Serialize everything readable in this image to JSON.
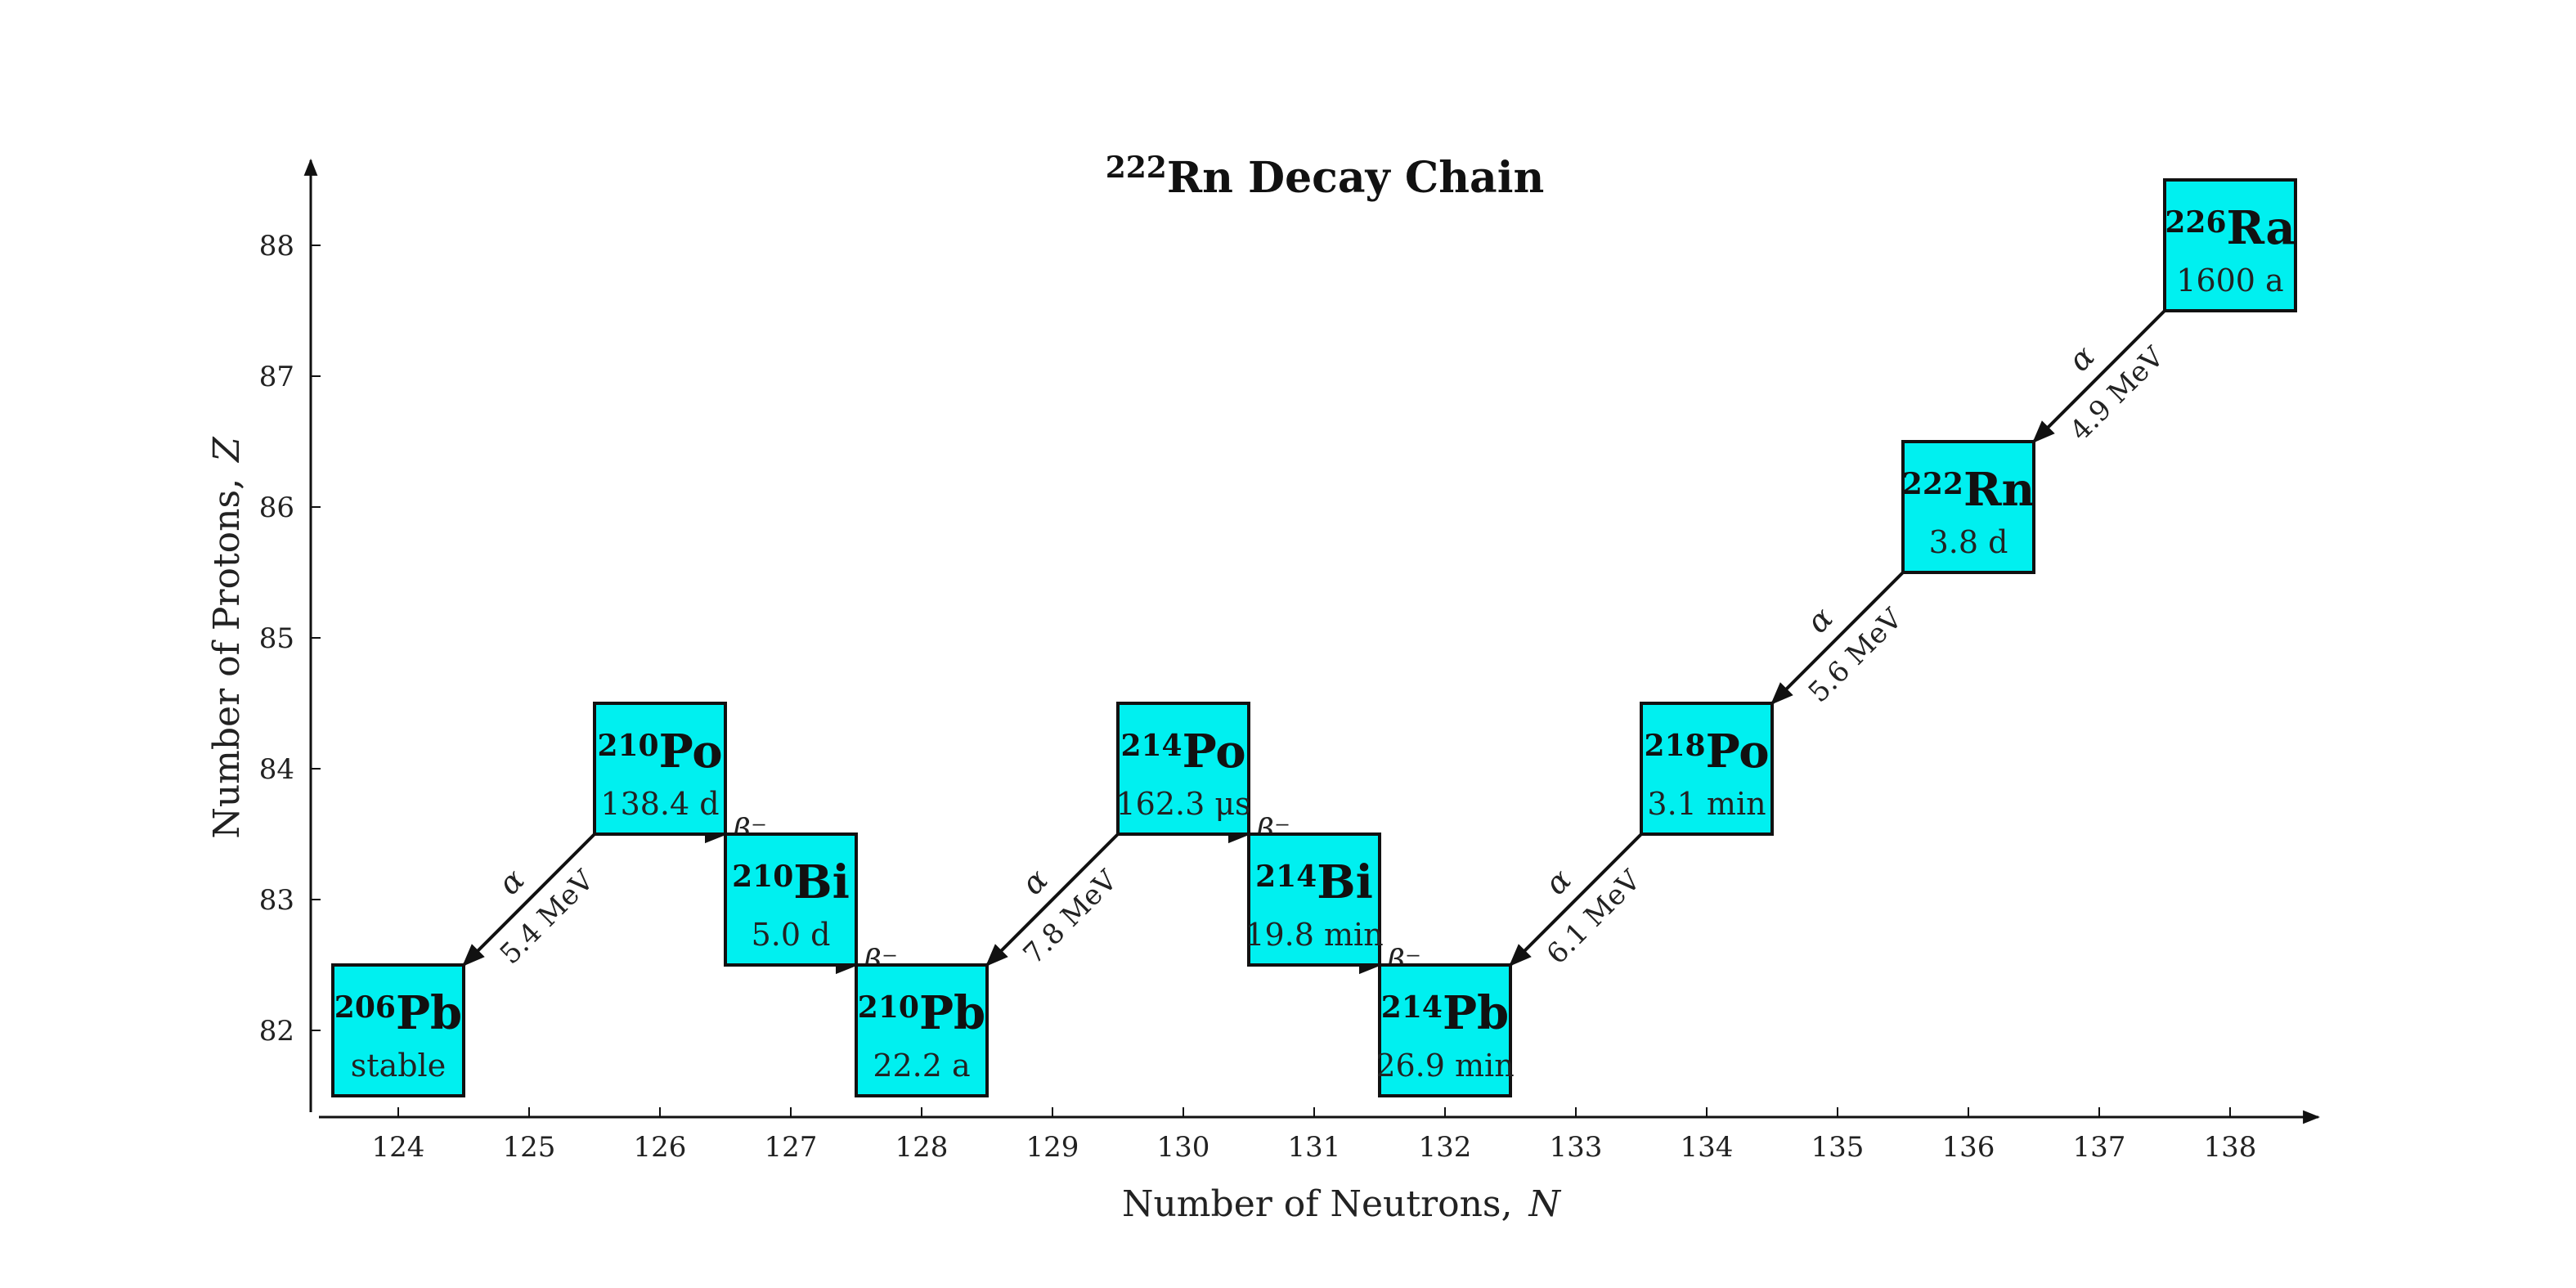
{
  "title": {
    "mass": "222",
    "symbol": "Rn",
    "text": " Decay Chain"
  },
  "x_axis": {
    "label": "Number of Neutrons,",
    "var": "N",
    "ticks": [
      124,
      125,
      126,
      127,
      128,
      129,
      130,
      131,
      132,
      133,
      134,
      135,
      136,
      137,
      138
    ]
  },
  "y_axis": {
    "label": "Number of Protons,",
    "var": "Z",
    "ticks": [
      82,
      83,
      84,
      85,
      86,
      87,
      88
    ]
  },
  "colors": {
    "box": "#00f0f0",
    "edge": "#111111",
    "axis": "#111111"
  },
  "nuclides": [
    {
      "mass": "206",
      "symbol": "Pb",
      "N": 124,
      "Z": 82,
      "half_life": "stable"
    },
    {
      "mass": "210",
      "symbol": "Po",
      "N": 126,
      "Z": 84,
      "half_life": "138.4 d"
    },
    {
      "mass": "210",
      "symbol": "Bi",
      "N": 127,
      "Z": 83,
      "half_life": "5.0 d"
    },
    {
      "mass": "210",
      "symbol": "Pb",
      "N": 128,
      "Z": 82,
      "half_life": "22.2 a"
    },
    {
      "mass": "214",
      "symbol": "Po",
      "N": 130,
      "Z": 84,
      "half_life": "162.3 μs"
    },
    {
      "mass": "214",
      "symbol": "Bi",
      "N": 131,
      "Z": 83,
      "half_life": "19.8 min"
    },
    {
      "mass": "214",
      "symbol": "Pb",
      "N": 132,
      "Z": 82,
      "half_life": "26.9 min"
    },
    {
      "mass": "218",
      "symbol": "Po",
      "N": 134,
      "Z": 84,
      "half_life": "3.1 min"
    },
    {
      "mass": "222",
      "symbol": "Rn",
      "N": 136,
      "Z": 86,
      "half_life": "3.8 d"
    },
    {
      "mass": "226",
      "symbol": "Ra",
      "N": 138,
      "Z": 88,
      "half_life": "1600 a"
    }
  ],
  "decays": [
    {
      "type": "alpha",
      "label": "α",
      "energy": "4.9 MeV",
      "from": [
        138,
        88
      ],
      "to": [
        136,
        86
      ]
    },
    {
      "type": "alpha",
      "label": "α",
      "energy": "5.6 MeV",
      "from": [
        136,
        86
      ],
      "to": [
        134,
        84
      ]
    },
    {
      "type": "alpha",
      "label": "α",
      "energy": "6.1 MeV",
      "from": [
        134,
        84
      ],
      "to": [
        132,
        82
      ]
    },
    {
      "type": "beta",
      "label": "β⁻",
      "energy": "",
      "from": [
        132,
        82
      ],
      "to": [
        131,
        83
      ]
    },
    {
      "type": "beta",
      "label": "β⁻",
      "energy": "",
      "from": [
        131,
        83
      ],
      "to": [
        130,
        84
      ]
    },
    {
      "type": "alpha",
      "label": "α",
      "energy": "7.8 MeV",
      "from": [
        130,
        84
      ],
      "to": [
        128,
        82
      ]
    },
    {
      "type": "beta",
      "label": "β⁻",
      "energy": "",
      "from": [
        128,
        82
      ],
      "to": [
        127,
        83
      ]
    },
    {
      "type": "beta",
      "label": "β⁻",
      "energy": "",
      "from": [
        127,
        83
      ],
      "to": [
        126,
        84
      ]
    },
    {
      "type": "alpha",
      "label": "α",
      "energy": "5.4 MeV",
      "from": [
        126,
        84
      ],
      "to": [
        124,
        82
      ]
    }
  ]
}
